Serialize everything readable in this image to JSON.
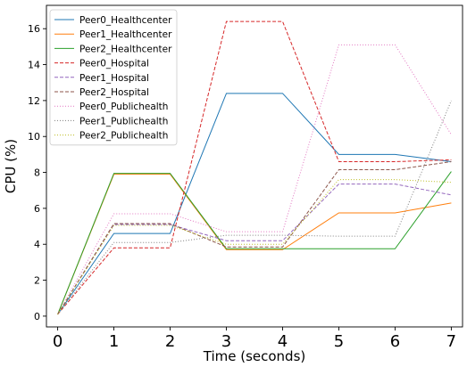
{
  "chart_data": {
    "type": "line",
    "xlabel": "Time (seconds)",
    "ylabel": "CPU (%)",
    "xlim": [
      -0.2,
      7.2
    ],
    "ylim": [
      -0.6,
      17.3
    ],
    "xticks": [
      0,
      1,
      2,
      3,
      4,
      5,
      6,
      7
    ],
    "yticks": [
      0,
      2,
      4,
      6,
      8,
      10,
      12,
      14,
      16
    ],
    "legend_position": "top-left",
    "grid": false,
    "x": [
      0,
      1,
      2,
      3,
      4,
      5,
      6,
      7
    ],
    "series": [
      {
        "name": "Peer0_Healthcenter",
        "color": "#1f77b4",
        "dash": "solid",
        "values": [
          0.1,
          4.6,
          4.6,
          12.4,
          12.4,
          9.0,
          9.0,
          8.6
        ]
      },
      {
        "name": "Peer1_Healthcenter",
        "color": "#ff7f0e",
        "dash": "solid",
        "values": [
          0.1,
          7.9,
          7.9,
          3.7,
          3.7,
          5.75,
          5.75,
          6.3
        ]
      },
      {
        "name": "Peer2_Healthcenter",
        "color": "#2ca02c",
        "dash": "solid",
        "values": [
          0.1,
          7.95,
          7.95,
          3.75,
          3.75,
          3.75,
          3.75,
          8.05
        ]
      },
      {
        "name": "Peer0_Hospital",
        "color": "#d62728",
        "dash": "dashed",
        "values": [
          0.1,
          3.8,
          3.8,
          16.4,
          16.4,
          8.6,
          8.6,
          8.7
        ]
      },
      {
        "name": "Peer1_Hospital",
        "color": "#9467bd",
        "dash": "dashed",
        "values": [
          0.1,
          5.1,
          5.1,
          4.2,
          4.2,
          7.35,
          7.35,
          6.75
        ]
      },
      {
        "name": "Peer2_Hospital",
        "color": "#8c564b",
        "dash": "dashed",
        "values": [
          0.1,
          5.15,
          5.15,
          3.85,
          3.85,
          8.15,
          8.15,
          8.6
        ]
      },
      {
        "name": "Peer0_Publichealth",
        "color": "#e377c2",
        "dash": "dotted",
        "values": [
          0.1,
          5.7,
          5.7,
          4.7,
          4.7,
          15.1,
          15.1,
          10.1
        ]
      },
      {
        "name": "Peer1_Publichealth",
        "color": "#7f7f7f",
        "dash": "dotted",
        "values": [
          0.1,
          4.1,
          4.1,
          4.5,
          4.5,
          4.45,
          4.45,
          12.0
        ]
      },
      {
        "name": "Peer2_Publichealth",
        "color": "#bcbd22",
        "dash": "dotted",
        "values": [
          0.1,
          5.05,
          5.05,
          4.0,
          4.0,
          7.6,
          7.6,
          7.45
        ]
      }
    ]
  }
}
